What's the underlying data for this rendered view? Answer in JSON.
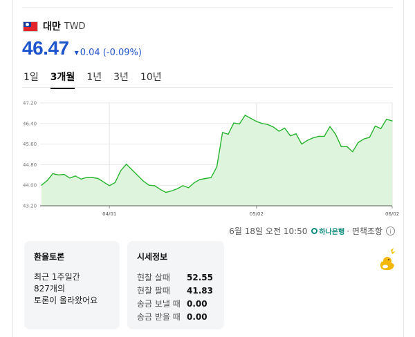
{
  "header": {
    "country": "대만",
    "code": "TWD"
  },
  "price": {
    "value": "46.47",
    "change": "0.04 (-0.09%)",
    "direction": "down",
    "color": "#1f55cc"
  },
  "tabs": [
    {
      "label": "1일",
      "active": false
    },
    {
      "label": "3개월",
      "active": true
    },
    {
      "label": "1년",
      "active": false
    },
    {
      "label": "3년",
      "active": false
    },
    {
      "label": "10년",
      "active": false
    }
  ],
  "chart_data": {
    "type": "area",
    "line_color": "#26b52e",
    "fill_color": "#dff4dc",
    "yticks": [
      43.2,
      44.0,
      44.8,
      45.6,
      46.4,
      47.2
    ],
    "ytick_labels": [
      "43.20",
      "44.00",
      "44.80",
      "45.60",
      "46.40",
      "47.20"
    ],
    "ylim": [
      43.2,
      47.2
    ],
    "xticks": [
      {
        "label": "04/01",
        "index": 12
      },
      {
        "label": "05/02",
        "index": 38
      },
      {
        "label": "06/02",
        "index": 62
      }
    ],
    "grid": true,
    "values": [
      44.0,
      44.18,
      44.45,
      44.4,
      44.42,
      44.28,
      44.36,
      44.24,
      44.3,
      44.3,
      44.26,
      44.12,
      43.98,
      44.1,
      44.56,
      44.82,
      44.6,
      44.38,
      44.16,
      44.0,
      43.98,
      43.84,
      43.72,
      43.78,
      43.86,
      43.98,
      43.9,
      44.1,
      44.22,
      44.26,
      44.3,
      44.72,
      46.05,
      45.98,
      46.42,
      46.38,
      46.72,
      46.6,
      46.48,
      46.4,
      46.36,
      46.26,
      46.1,
      46.22,
      45.92,
      46.0,
      45.6,
      45.74,
      45.84,
      45.9,
      45.9,
      46.28,
      45.98,
      45.5,
      45.5,
      45.3,
      45.66,
      45.8,
      45.86,
      46.3,
      46.2,
      46.56,
      46.5
    ]
  },
  "timestamp": {
    "text": "6월 18일 오전 10:50",
    "bank": "하나은행",
    "suffix": "· 면책조항",
    "info_icon": "i"
  },
  "forum": {
    "title": "환율토론",
    "line1": "최근 1주일간",
    "line2": "827개의",
    "line3": "토론이 올라왔어요"
  },
  "market": {
    "title": "시세정보",
    "rows": [
      {
        "label": "현찰 살때",
        "value": "52.55"
      },
      {
        "label": "현찰 팔때",
        "value": "41.83"
      },
      {
        "label": "송금 보낼 때",
        "value": "0.00"
      },
      {
        "label": "송금 받을 때",
        "value": "0.00"
      }
    ]
  }
}
